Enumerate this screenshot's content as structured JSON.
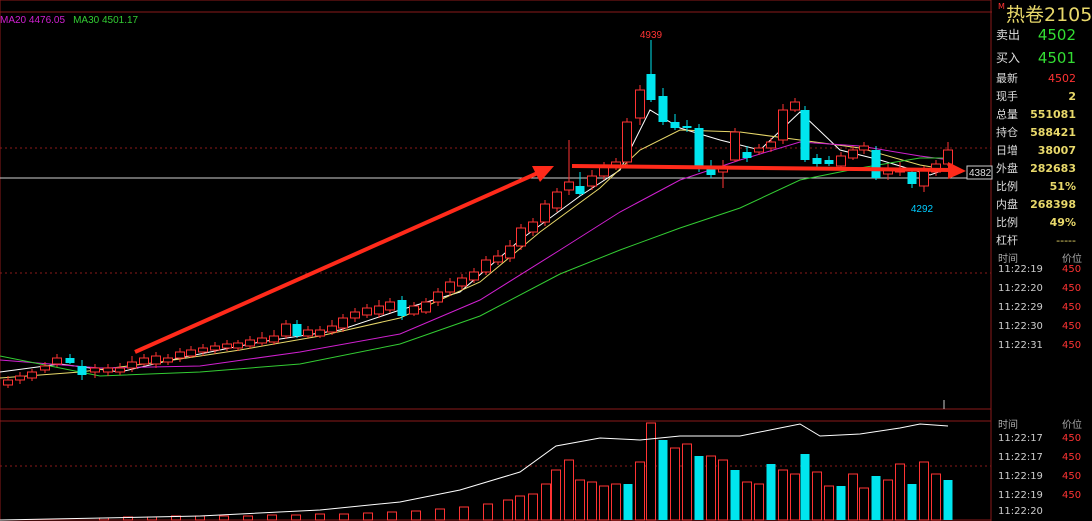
{
  "legend": {
    "ma20": "MA20 4476.05",
    "ma30": "MA30 4501.17",
    "ma20_color": "#d020d0",
    "ma30_color": "#33cc33"
  },
  "chart_labels": {
    "high": "4939",
    "low": "4292",
    "price_line": "4382"
  },
  "panel": {
    "mark": "M",
    "title": "热卷2105",
    "sell_label": "卖出",
    "sell_value": "4502",
    "buy_label": "买入",
    "buy_value": "4501",
    "rows": [
      {
        "label": "最新",
        "value": "4502"
      },
      {
        "label": "现手",
        "value": "2"
      },
      {
        "label": "总量",
        "value": "551081"
      },
      {
        "label": "持仓",
        "value": "588421"
      },
      {
        "label": "日增",
        "value": "38007"
      },
      {
        "label": "外盘",
        "value": "282683"
      },
      {
        "label": "比例",
        "value": "51%"
      },
      {
        "label": "内盘",
        "value": "268398"
      },
      {
        "label": "比例",
        "value": "49%"
      },
      {
        "label": "杠杆",
        "value": "-----"
      }
    ],
    "ticks_header": {
      "time": "时间",
      "price": "价位"
    },
    "ticks": [
      {
        "time": "11:22:19",
        "price": "450"
      },
      {
        "time": "11:22:20",
        "price": "450"
      },
      {
        "time": "11:22:29",
        "price": "450"
      },
      {
        "time": "11:22:30",
        "price": "450"
      },
      {
        "time": "11:22:31",
        "price": "450"
      }
    ],
    "ticks2_header": {
      "time": "时间",
      "price": "价位"
    },
    "ticks2": [
      {
        "time": "11:22:17",
        "price": "450"
      },
      {
        "time": "11:22:17",
        "price": "450"
      },
      {
        "time": "11:22:19",
        "price": "450"
      },
      {
        "time": "11:22:19",
        "price": "450"
      },
      {
        "time": "11:22:20",
        "price": ""
      }
    ]
  },
  "colors": {
    "up": "#ff3333",
    "down": "#00e5ee",
    "ma5": "#ffffff",
    "ma10": "#e8d86a",
    "ma20": "#d020d0",
    "ma30": "#33cc33",
    "arrow": "#ff2a1a"
  }
}
